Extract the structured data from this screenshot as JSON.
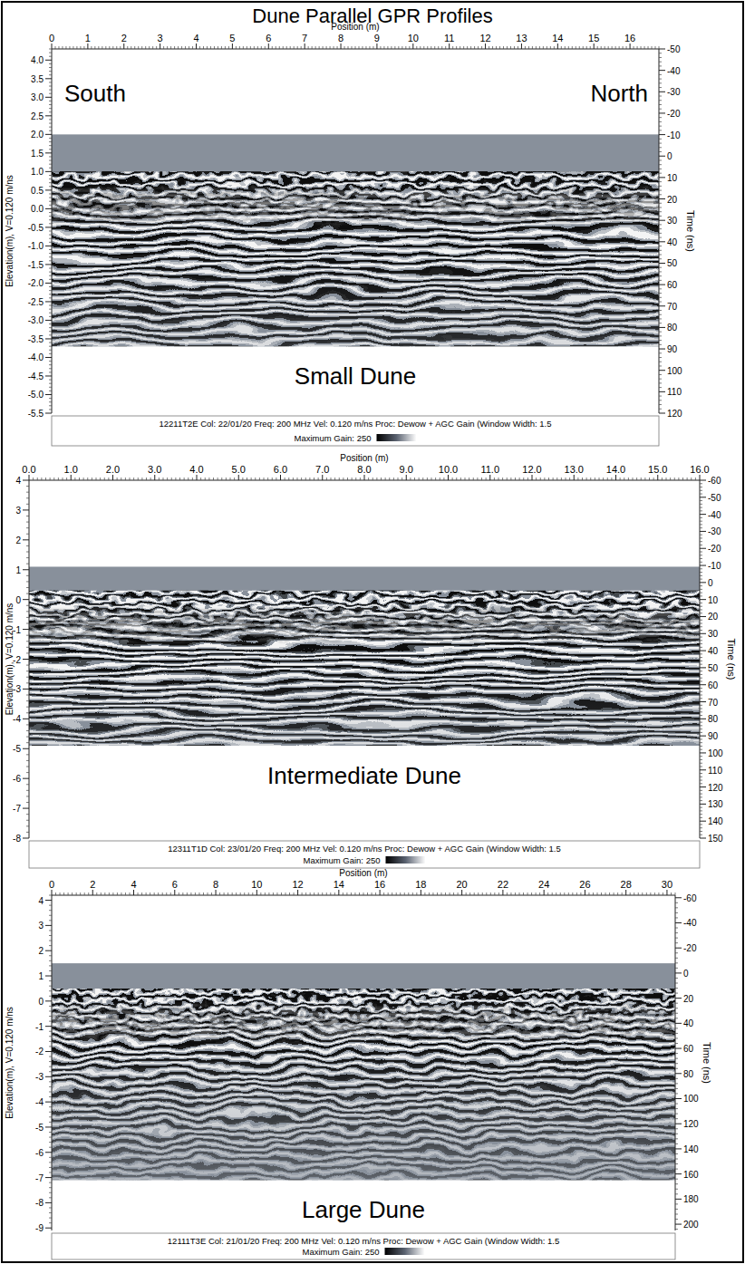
{
  "title": "Dune Parallel GPR Profiles",
  "chart_data": [
    {
      "type": "radargram",
      "title": "Small Dune",
      "xlabel": "Position (m)",
      "ylabel": "Elevation(m), V=0.120 m/ns",
      "y2label": "Time (ns)",
      "annotations": [
        "South",
        "North"
      ],
      "xlim": [
        0,
        16.8
      ],
      "xticks": [
        0,
        1,
        2,
        3,
        4,
        5,
        6,
        7,
        8,
        9,
        10,
        11,
        12,
        13,
        14,
        15,
        16
      ],
      "ylim": [
        -5.5,
        4.3
      ],
      "yticks": [
        -5.5,
        {
          "value": -5,
          "label": "-5.0"
        },
        -4.5,
        {
          "value": -4,
          "label": "-4.0"
        },
        -3.5,
        {
          "value": -3,
          "label": "-3.0"
        },
        -2.5,
        {
          "value": -2,
          "label": "-2.0"
        },
        -1.5,
        {
          "value": -1,
          "label": "-1.0"
        },
        -0.5,
        {
          "value": 0,
          "label": "0.0"
        },
        0.5,
        {
          "value": 1,
          "label": "1.0"
        },
        1.5,
        {
          "value": 2,
          "label": "2.0"
        },
        2.5,
        {
          "value": 3,
          "label": "3.0"
        },
        3.5,
        {
          "value": 4,
          "label": "4.0"
        }
      ],
      "y2lim": [
        120,
        -50
      ],
      "y2ticks": [
        -50,
        -40,
        -30,
        -20,
        -10,
        0,
        10,
        20,
        30,
        40,
        50,
        60,
        70,
        80,
        90,
        100,
        110,
        120
      ],
      "profile": {
        "top": 2.0,
        "surface": 1.0,
        "bottom": -3.7
      },
      "footer": "12211T2E Col: 22/01/20 Freq: 200 MHz Vel: 0.120 m/ns Proc: Dewow + AGC Gain (Window Width: 1.5",
      "gain_label": "Maximum Gain: 250"
    },
    {
      "type": "radargram",
      "title": "Intermediate Dune",
      "xlabel": "Position (m)",
      "ylabel": "Elevation(m), V=0.120 m/ns",
      "y2label": "Time (ns)",
      "xlim": [
        0,
        16
      ],
      "xticks": [
        {
          "value": 0,
          "label": "0.0"
        },
        {
          "value": 1,
          "label": "1.0"
        },
        {
          "value": 2,
          "label": "2.0"
        },
        {
          "value": 3,
          "label": "3.0"
        },
        {
          "value": 4,
          "label": "4.0"
        },
        {
          "value": 5,
          "label": "5.0"
        },
        {
          "value": 6,
          "label": "6.0"
        },
        {
          "value": 7,
          "label": "7.0"
        },
        {
          "value": 8,
          "label": "8.0"
        },
        {
          "value": 9,
          "label": "9.0"
        },
        {
          "value": 10,
          "label": "10.0"
        },
        {
          "value": 11,
          "label": "11.0"
        },
        {
          "value": 12,
          "label": "12.0"
        },
        {
          "value": 13,
          "label": "13.0"
        },
        {
          "value": 14,
          "label": "14.0"
        },
        {
          "value": 15,
          "label": "15.0"
        },
        {
          "value": 16,
          "label": "16.0"
        }
      ],
      "ylim": [
        -8,
        4
      ],
      "yticks": [
        -8,
        -7,
        -6,
        -5,
        -4,
        -3,
        -2,
        -1,
        0,
        1,
        2,
        3,
        4
      ],
      "y2lim": [
        150,
        -60
      ],
      "y2ticks": [
        -60,
        -50,
        -40,
        -30,
        -20,
        -10,
        0,
        10,
        20,
        30,
        40,
        50,
        60,
        70,
        80,
        90,
        100,
        110,
        120,
        130,
        140,
        150
      ],
      "profile": {
        "top": 1.1,
        "surface": 0.3,
        "bottom": -4.9
      },
      "footer": "12311T1D Col: 23/01/20 Freq: 200 MHz Vel: 0.120 m/ns Proc: Dewow + AGC Gain (Window Width: 1.5",
      "gain_label": "Maximum Gain: 250"
    },
    {
      "type": "radargram",
      "title": "Large Dune",
      "xlabel": "Position (m)",
      "ylabel": "Elevation(m), V=0.120 m/ns",
      "y2label": "Time (ns)",
      "xlim": [
        0,
        30.4
      ],
      "xticks": [
        0,
        2,
        4,
        6,
        8,
        10,
        12,
        14,
        16,
        18,
        20,
        22,
        24,
        26,
        28,
        30
      ],
      "ylim": [
        -9.1,
        4.2
      ],
      "yticks": [
        -9,
        -8,
        -7,
        -6,
        -5,
        -4,
        -3,
        -2,
        -1,
        0,
        1,
        2,
        3,
        4
      ],
      "y2lim": [
        205,
        -62
      ],
      "y2ticks": [
        -60,
        -40,
        -20,
        0,
        20,
        40,
        60,
        80,
        100,
        120,
        140,
        160,
        180,
        200
      ],
      "profile": {
        "top": 1.5,
        "surface": 0.5,
        "bottom": -7.1
      },
      "footer": "12111T3E Col: 21/01/20 Freq: 200 MHz Vel: 0.120 m/ns Proc: Dewow + AGC Gain (Window Width: 1.5",
      "gain_label": "Maximum Gain: 250"
    }
  ]
}
